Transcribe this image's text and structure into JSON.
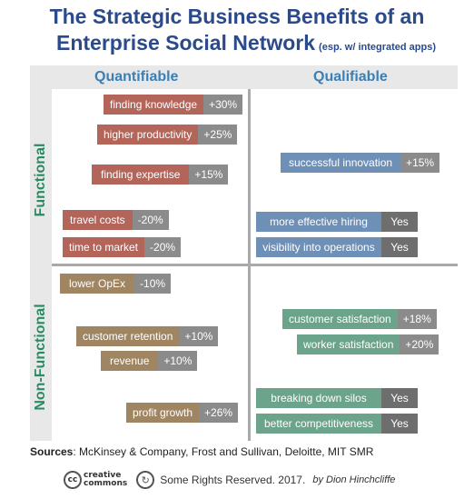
{
  "title_line1": "The Strategic Business Benefits of an",
  "title_line2": "Enterprise Social Network",
  "title_sub": "(esp. w/ integrated apps)",
  "columns": {
    "left": "Quantifiable",
    "right": "Qualifiable"
  },
  "rows": {
    "top": "Functional",
    "bottom": "Non-Functional"
  },
  "items": [
    {
      "label": "finding knowledge",
      "value": "+30%"
    },
    {
      "label": "higher productivity",
      "value": "+25%"
    },
    {
      "label": "finding expertise",
      "value": "+15%"
    },
    {
      "label": "travel costs",
      "value": "-20%"
    },
    {
      "label": "time to market",
      "value": "-20%"
    },
    {
      "label": "successful innovation",
      "value": "+15%"
    },
    {
      "label": "more effective hiring",
      "value": "Yes"
    },
    {
      "label": "visibility into operations",
      "value": "Yes"
    },
    {
      "label": "lower OpEx",
      "value": "-10%"
    },
    {
      "label": "customer retention",
      "value": "+10%"
    },
    {
      "label": "revenue",
      "value": "+10%"
    },
    {
      "label": "profit growth",
      "value": "+26%"
    },
    {
      "label": "customer satisfaction",
      "value": "+18%"
    },
    {
      "label": "worker satisfaction",
      "value": "+20%"
    },
    {
      "label": "breaking down silos",
      "value": "Yes"
    },
    {
      "label": "better competitiveness",
      "value": "Yes"
    }
  ],
  "sources_label": "Sources",
  "sources_text": ": McKinsey & Company, Frost and Sullivan, Deloitte, MIT SMR",
  "cc_text_top": "creative",
  "cc_text_bottom": "commons",
  "rights": "Some Rights Reserved. 2017.",
  "author": "by Dion Hinchcliffe",
  "colors": {
    "title": "#2b4a8b",
    "column_header": "#3a7fb5",
    "row_header": "#2a8a63",
    "quantifiable_functional": "#b3655a",
    "quantifiable_nonfunctional": "#a08563",
    "qualifiable_functional": "#6e8fb6",
    "qualifiable_nonfunctional": "#6ba48a"
  }
}
